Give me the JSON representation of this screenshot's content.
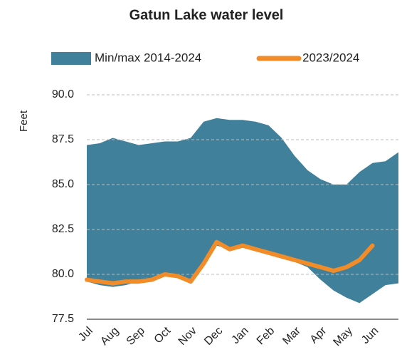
{
  "chart_data": {
    "type": "band-line",
    "title": "Gatun Lake water level",
    "y_label": "Feet",
    "categories": [
      "Jul",
      null,
      "Aug",
      null,
      "Sep",
      null,
      "Oct",
      null,
      "Nov",
      null,
      "Dec",
      null,
      "Jan",
      null,
      "Feb",
      null,
      "Mar",
      null,
      "Apr",
      null,
      "May",
      null,
      "Jun",
      null,
      null
    ],
    "series": [
      {
        "name": "Min/max 2014-2024",
        "color": "#41809b",
        "max": [
          87.2,
          87.3,
          87.6,
          87.4,
          87.2,
          87.3,
          87.4,
          87.4,
          87.6,
          88.5,
          88.7,
          88.6,
          88.6,
          88.5,
          88.3,
          87.6,
          86.6,
          85.8,
          85.3,
          85.0,
          85.0,
          85.7,
          86.2,
          86.3,
          86.8
        ],
        "min": [
          79.6,
          79.4,
          79.3,
          79.4,
          79.6,
          79.6,
          79.9,
          79.8,
          79.7,
          80.6,
          81.6,
          81.4,
          81.5,
          81.3,
          81.1,
          80.9,
          80.7,
          80.4,
          79.7,
          79.1,
          78.7,
          78.4,
          78.9,
          79.4,
          79.5
        ]
      },
      {
        "name": "2023/2024",
        "color": "#f28c28",
        "values": [
          79.7,
          79.6,
          79.5,
          79.6,
          79.6,
          79.7,
          80.0,
          79.9,
          79.6,
          80.6,
          81.8,
          81.4,
          81.6,
          81.4,
          81.2,
          81.0,
          80.8,
          80.6,
          80.4,
          80.2,
          80.4,
          80.8,
          81.6,
          null,
          null
        ]
      }
    ],
    "ylim": [
      77.5,
      90
    ],
    "yticks": [
      77.5,
      {
        "value": 80,
        "label": "80.0"
      },
      82.5,
      {
        "value": 85,
        "label": "85.0"
      },
      87.5,
      {
        "value": 90,
        "label": "90.0"
      }
    ],
    "grid": true,
    "legend": "top"
  }
}
